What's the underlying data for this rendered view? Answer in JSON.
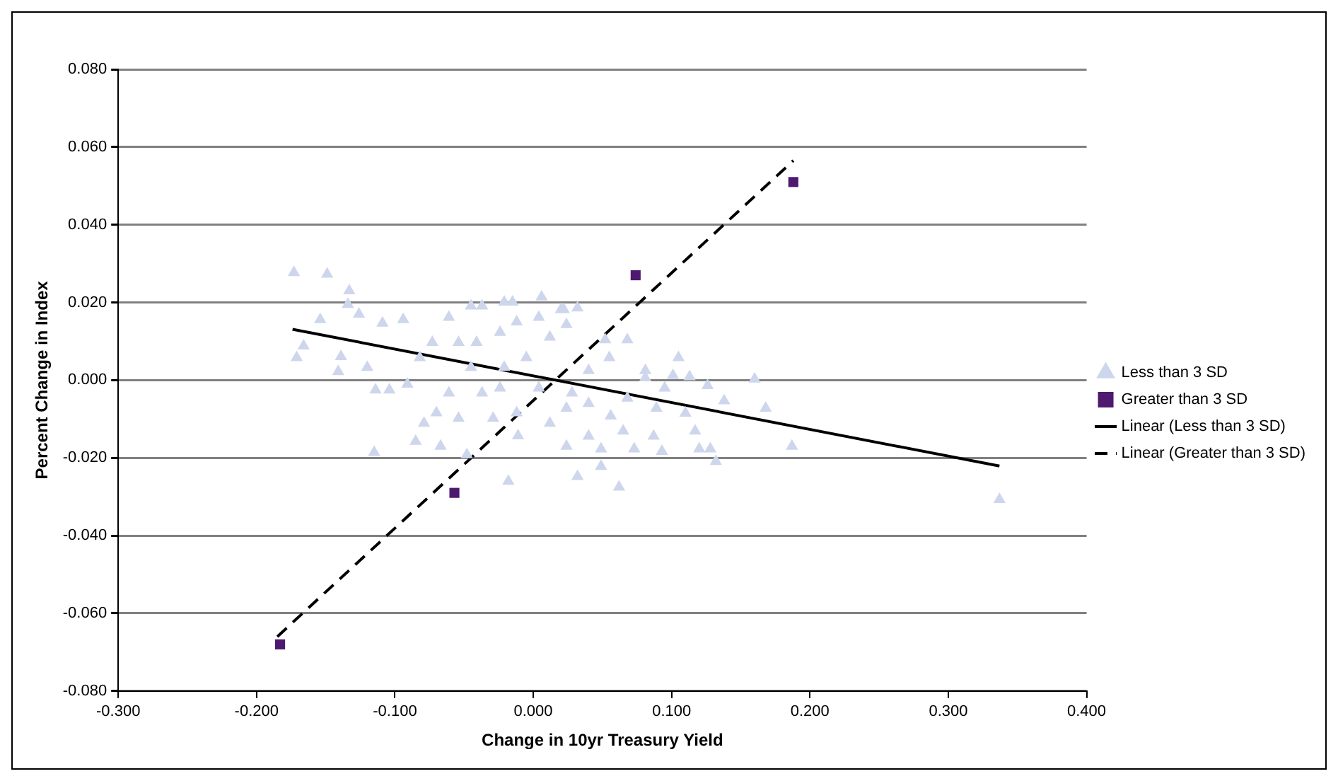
{
  "chart_data": {
    "type": "scatter",
    "xlabel": "Change in 10yr Treasury Yield",
    "ylabel": "Percent Change in Index",
    "xlim": [
      -0.3,
      0.4
    ],
    "xticks": [
      {
        "value": -0.3,
        "label": "-0.300"
      },
      {
        "value": -0.2,
        "label": "-0.200"
      },
      {
        "value": -0.1,
        "label": "-0.100"
      },
      {
        "value": 0,
        "label": "0.000"
      },
      {
        "value": 0.1,
        "label": "0.100"
      },
      {
        "value": 0.2,
        "label": "0.200"
      },
      {
        "value": 0.3,
        "label": "0.300"
      },
      {
        "value": 0.4,
        "label": "0.400"
      }
    ],
    "ylim": [
      -0.08,
      0.08
    ],
    "yticks": [
      {
        "value": -0.08,
        "label": "-0.080"
      },
      {
        "value": -0.06,
        "label": "-0.060"
      },
      {
        "value": -0.04,
        "label": "-0.040"
      },
      {
        "value": -0.02,
        "label": "-0.020"
      },
      {
        "value": 0,
        "label": "0.000"
      },
      {
        "value": 0.02,
        "label": "0.020"
      },
      {
        "value": 0.04,
        "label": "0.040"
      },
      {
        "value": 0.06,
        "label": "0.060"
      },
      {
        "value": 0.08,
        "label": "0.080"
      }
    ],
    "grid": "y",
    "legend": "right",
    "series": [
      {
        "name": "Less than 3 SD",
        "type": "scatter",
        "marker": "triangle",
        "color": "#cdd6ec",
        "x": [
          -0.173,
          -0.149,
          -0.133,
          -0.134,
          -0.126,
          -0.154,
          -0.166,
          -0.171,
          -0.139,
          -0.141,
          -0.12,
          -0.109,
          -0.094,
          -0.114,
          -0.104,
          -0.091,
          -0.115,
          -0.085,
          -0.067,
          -0.048,
          -0.018,
          -0.079,
          -0.061,
          -0.045,
          -0.037,
          -0.021,
          -0.015,
          0.006,
          0.02,
          -0.073,
          -0.082,
          -0.054,
          -0.045,
          -0.061,
          -0.037,
          -0.07,
          -0.054,
          -0.029,
          -0.012,
          -0.011,
          -0.041,
          -0.024,
          -0.012,
          0.004,
          0.012,
          -0.005,
          -0.021,
          0.004,
          -0.024,
          0.024,
          0.012,
          0.022,
          0.032,
          0.024,
          0.068,
          0.052,
          0.055,
          0.105,
          0.081,
          0.101,
          0.113,
          0.126,
          0.16,
          0.138,
          0.168,
          0.095,
          0.089,
          0.11,
          0.068,
          0.056,
          0.04,
          0.028,
          0.065,
          0.04,
          0.024,
          0.049,
          0.073,
          0.087,
          0.093,
          0.117,
          0.12,
          0.128,
          0.132,
          0.187,
          0.049,
          0.032,
          0.062,
          0.081,
          0.04,
          0.337
        ],
        "values": [
          0.0277,
          0.0273,
          0.023,
          0.0195,
          0.017,
          0.0156,
          0.0088,
          0.0058,
          0.0061,
          0.0022,
          0.0033,
          0.0147,
          0.0156,
          -0.0025,
          -0.0025,
          -0.001,
          -0.0186,
          -0.0157,
          -0.017,
          -0.0192,
          -0.026,
          -0.0111,
          0.0162,
          0.0191,
          0.0191,
          0.0201,
          0.0201,
          0.0214,
          0.0182,
          0.0097,
          0.0058,
          0.0097,
          0.0033,
          -0.0033,
          -0.0033,
          -0.0084,
          -0.0098,
          -0.0098,
          -0.0084,
          -0.0143,
          0.0097,
          0.0123,
          0.015,
          0.0162,
          0.0111,
          0.0058,
          0.0033,
          -0.002,
          -0.002,
          -0.0072,
          -0.0111,
          0.0182,
          0.0186,
          0.0143,
          0.0104,
          0.0104,
          0.0058,
          0.0058,
          0.0025,
          0.0012,
          0.0009,
          -0.0014,
          0.0003,
          -0.0053,
          -0.0072,
          -0.002,
          -0.0072,
          -0.0085,
          -0.0046,
          -0.0092,
          -0.006,
          -0.0033,
          -0.0131,
          -0.0144,
          -0.017,
          -0.0177,
          -0.0177,
          -0.0144,
          -0.0183,
          -0.0131,
          -0.0177,
          -0.0177,
          -0.0209,
          -0.017,
          -0.0222,
          -0.0248,
          -0.0275,
          0.0006,
          0.0025,
          -0.0307
        ]
      },
      {
        "name": "Greater than 3 SD",
        "type": "scatter",
        "marker": "square",
        "color": "#4e1a70",
        "x": [
          -0.183,
          -0.057,
          0.074,
          0.188
        ],
        "values": [
          -0.068,
          -0.029,
          0.027,
          0.051
        ]
      },
      {
        "name": "Linear (Less than 3 SD)",
        "type": "line",
        "marker": "none",
        "line_style": "solid",
        "color": "#000000",
        "x": [
          -0.174,
          0.337
        ],
        "values": [
          0.0131,
          -0.0221
        ]
      },
      {
        "name": "Linear (Greater than 3 SD)",
        "type": "line",
        "marker": "none",
        "line_style": "dashed",
        "color": "#000000",
        "x": [
          -0.185,
          0.188
        ],
        "values": [
          -0.066,
          0.0565
        ]
      }
    ]
  }
}
